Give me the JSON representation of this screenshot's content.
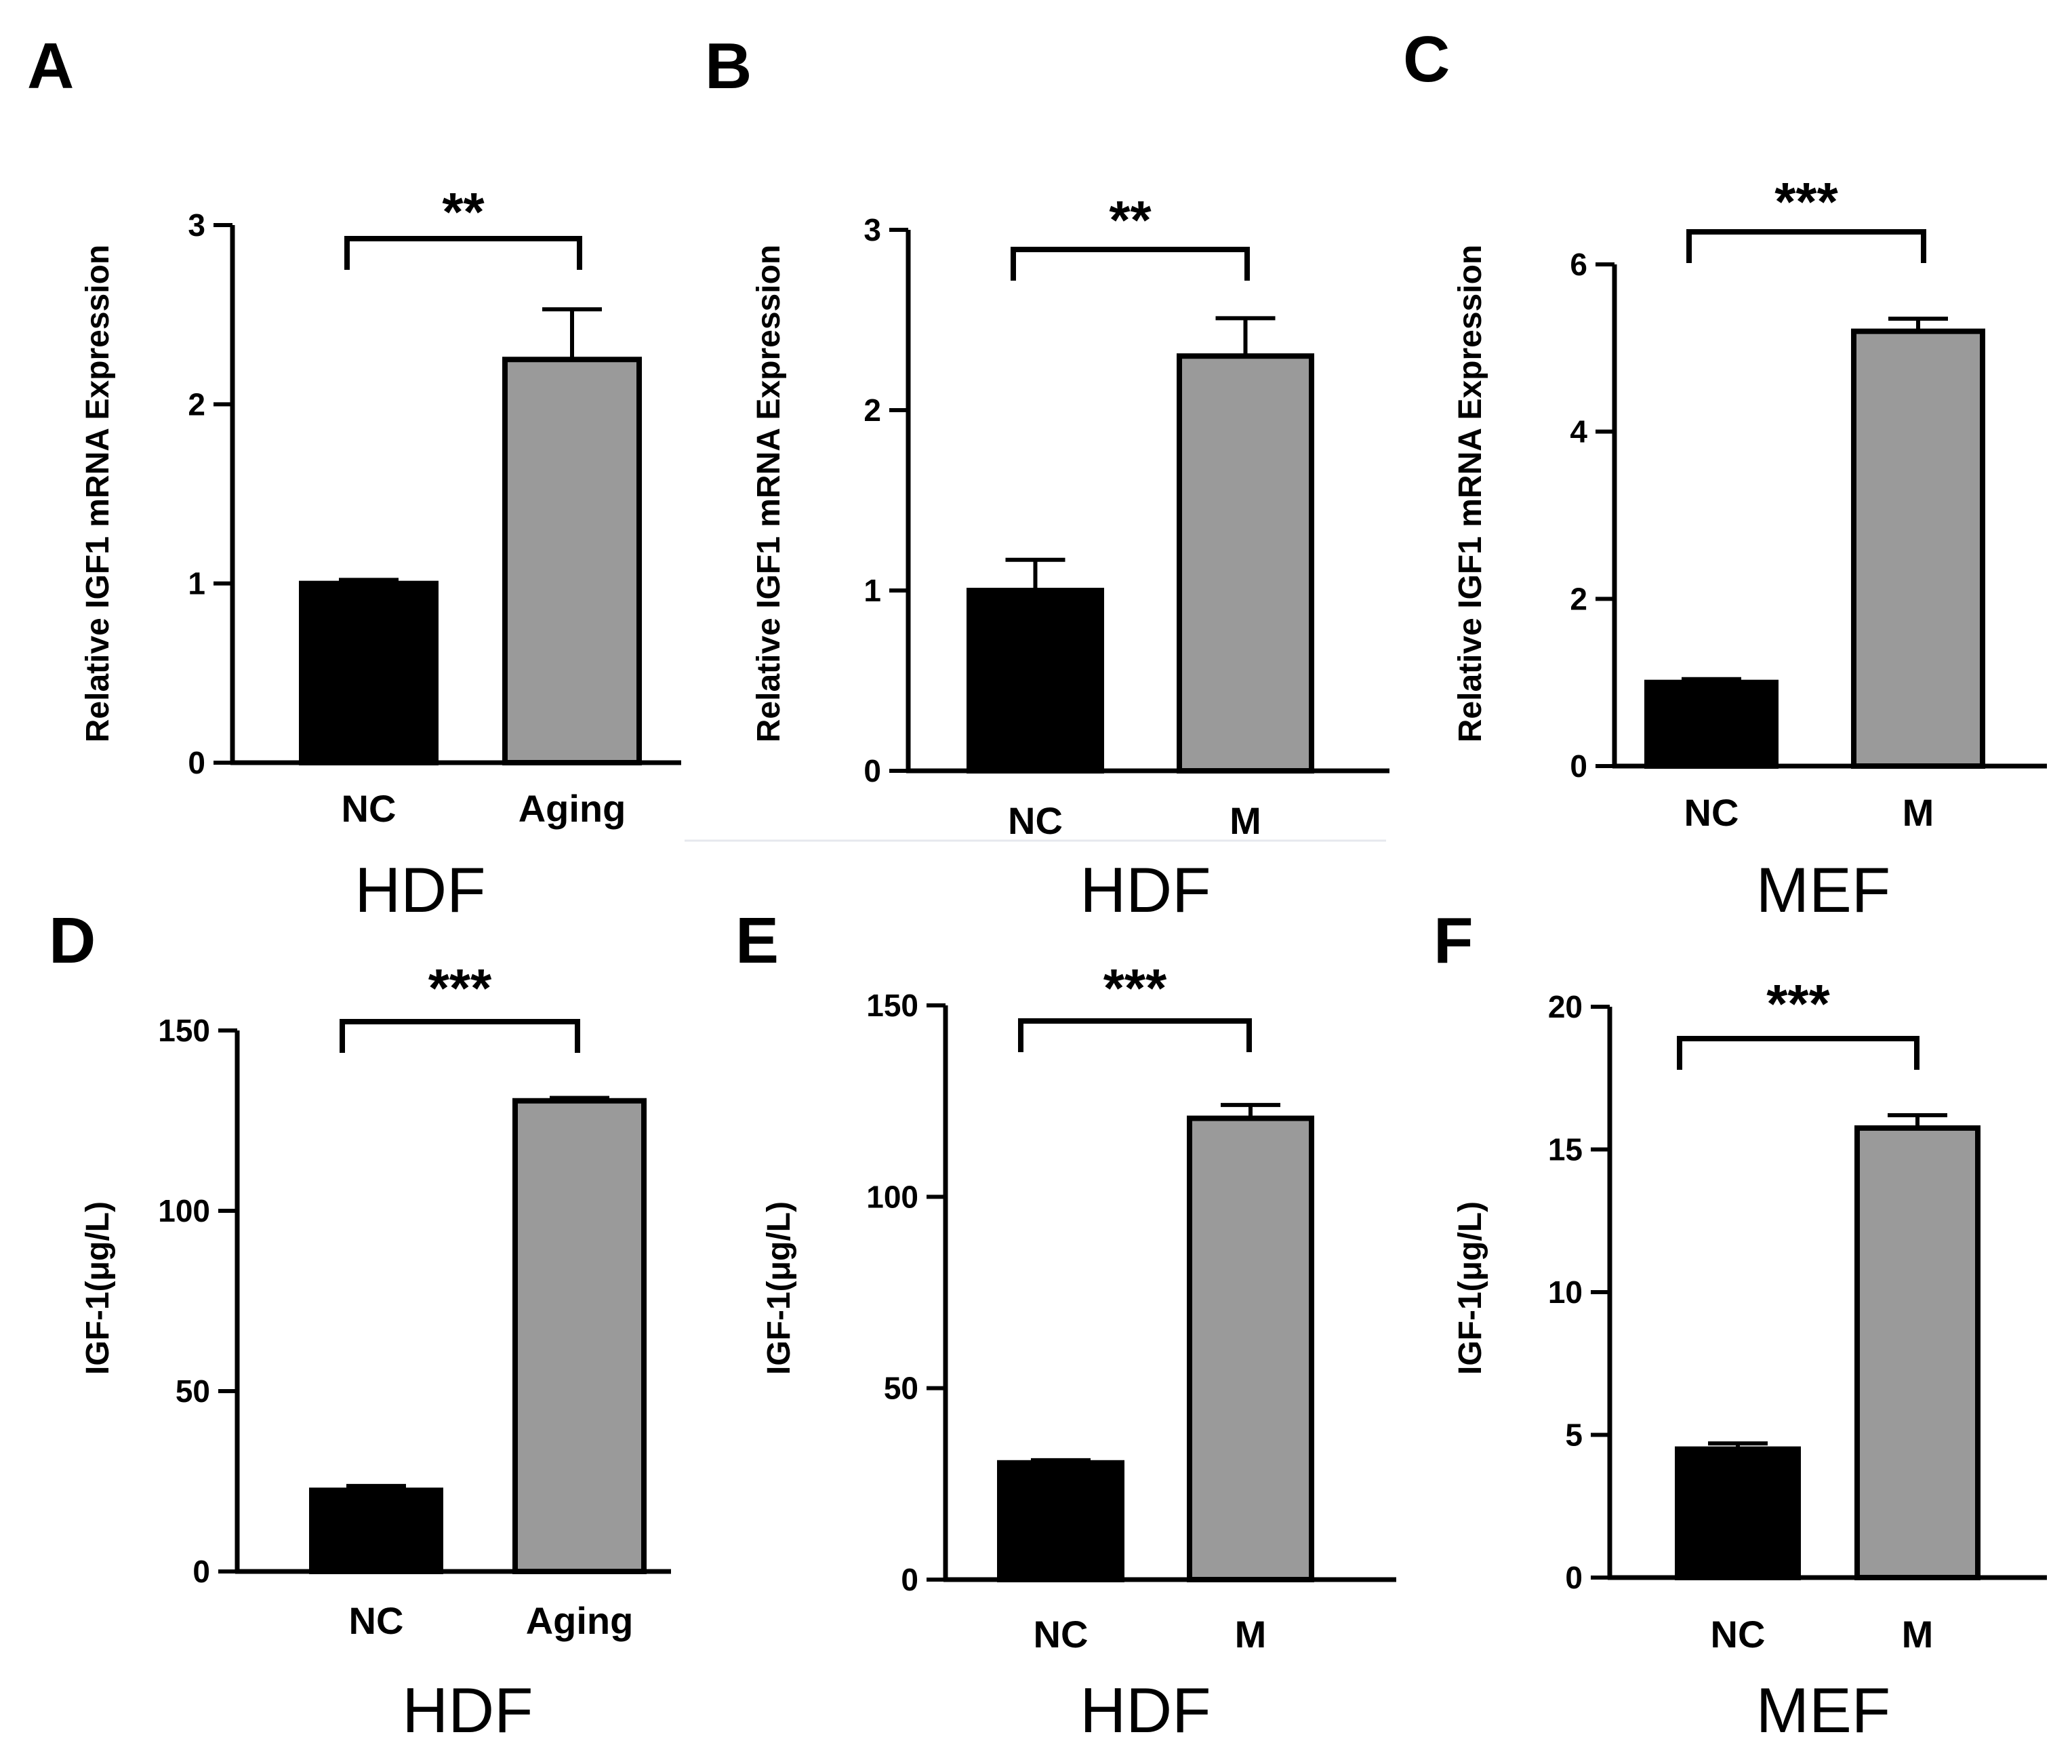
{
  "figure": {
    "panel_count": 6
  },
  "chart_data": [
    {
      "panel": "A",
      "type": "bar",
      "categories": [
        "NC",
        "Aging"
      ],
      "values": [
        1.0,
        2.25
      ],
      "errors": [
        0.02,
        0.28
      ],
      "colors": [
        "#000000",
        "#9a9a9a"
      ],
      "ylabel": "Relative IGF1 mRNA Expression",
      "xlabel": "HDF",
      "ylim": [
        0,
        3
      ],
      "yticks": [
        0,
        1,
        2,
        3
      ],
      "significance": "**"
    },
    {
      "panel": "B",
      "type": "bar",
      "categories": [
        "NC",
        "M"
      ],
      "values": [
        1.0,
        2.3
      ],
      "errors": [
        0.17,
        0.21
      ],
      "colors": [
        "#000000",
        "#9a9a9a"
      ],
      "ylabel": "Relative IGF1 mRNA Expression",
      "xlabel": "HDF",
      "ylim": [
        0,
        3
      ],
      "yticks": [
        0,
        1,
        2,
        3
      ],
      "significance": "**"
    },
    {
      "panel": "C",
      "type": "bar",
      "categories": [
        "NC",
        "M"
      ],
      "values": [
        1.0,
        5.2
      ],
      "errors": [
        0.04,
        0.15
      ],
      "colors": [
        "#000000",
        "#9a9a9a"
      ],
      "ylabel": "Relative IGF1 mRNA Expression",
      "xlabel": "MEF",
      "ylim": [
        0,
        6
      ],
      "yticks": [
        0,
        2,
        4,
        6
      ],
      "significance": "***"
    },
    {
      "panel": "D",
      "type": "bar",
      "categories": [
        "NC",
        "Aging"
      ],
      "values": [
        22.5,
        130.5
      ],
      "errors": [
        1.2,
        0.8
      ],
      "colors": [
        "#000000",
        "#9a9a9a"
      ],
      "ylabel": "IGF-1(μg/L)",
      "xlabel": "HDF",
      "ylim": [
        0,
        150
      ],
      "yticks": [
        0,
        50,
        100,
        150
      ],
      "significance": "***"
    },
    {
      "panel": "E",
      "type": "bar",
      "categories": [
        "NC",
        "M"
      ],
      "values": [
        30.5,
        120.5
      ],
      "errors": [
        0.7,
        3.5
      ],
      "colors": [
        "#000000",
        "#9a9a9a"
      ],
      "ylabel": "IGF-1(μg/L)",
      "xlabel": "HDF",
      "ylim": [
        0,
        150
      ],
      "yticks": [
        0,
        50,
        100,
        150
      ],
      "significance": "***"
    },
    {
      "panel": "F",
      "type": "bar",
      "categories": [
        "NC",
        "M"
      ],
      "values": [
        4.5,
        15.75
      ],
      "errors": [
        0.2,
        0.45
      ],
      "colors": [
        "#000000",
        "#9a9a9a"
      ],
      "ylabel": "IGF-1(μg/L)",
      "xlabel": "MEF",
      "ylim": [
        0,
        20
      ],
      "yticks": [
        0,
        5,
        10,
        15,
        20
      ],
      "significance": "***"
    }
  ]
}
